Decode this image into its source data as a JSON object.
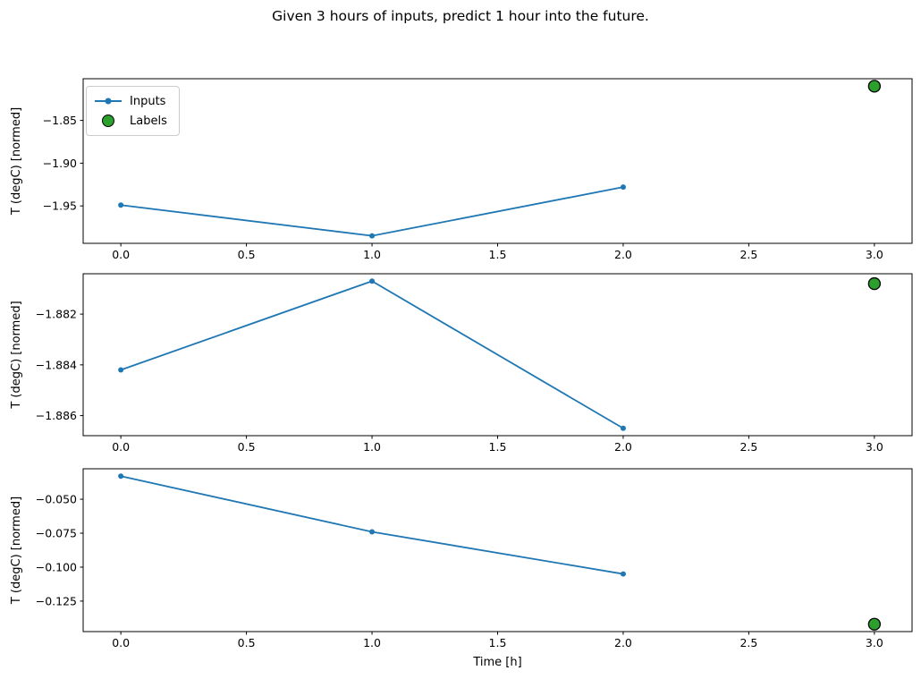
{
  "figure": {
    "title": "Given 3 hours of inputs, predict 1 hour into the future.",
    "background": "#ffffff"
  },
  "colors": {
    "inputs_line": "#1f77b4",
    "labels_fill": "#2ca02c",
    "labels_edge": "#000000",
    "axis": "#000000",
    "legend_border": "#cccccc"
  },
  "legend": {
    "position": "upper-left-of-first-subplot",
    "items": [
      {
        "label": "Inputs",
        "marker": "line-with-dot",
        "color": "#1f77b4"
      },
      {
        "label": "Labels",
        "marker": "filled-circle",
        "color": "#2ca02c"
      }
    ]
  },
  "chart_data": [
    {
      "type": "line",
      "title": "",
      "xlabel": "",
      "ylabel": "T (degC) [normed]",
      "x": [
        0,
        1,
        2
      ],
      "series": [
        {
          "name": "Inputs",
          "values": [
            -1.949,
            -1.985,
            -1.928
          ]
        }
      ],
      "labels_point": {
        "name": "Labels",
        "x": 3,
        "y": -1.81
      },
      "xlim": [
        -0.15,
        3.15
      ],
      "ylim": [
        -1.99375,
        -1.80125
      ],
      "xticks": [
        0,
        0.5,
        1,
        1.5,
        2,
        2.5,
        3
      ],
      "xtick_labels": [
        "0.0",
        "0.5",
        "1.0",
        "1.5",
        "2.0",
        "2.5",
        "3.0"
      ],
      "yticks": [
        -1.85,
        -1.9,
        -1.95
      ],
      "ytick_labels": [
        "−1.85",
        "−1.90",
        "−1.95"
      ],
      "grid": false
    },
    {
      "type": "line",
      "title": "",
      "xlabel": "",
      "ylabel": "T (degC) [normed]",
      "x": [
        0,
        1,
        2
      ],
      "series": [
        {
          "name": "Inputs",
          "values": [
            -1.8842,
            -1.8807,
            -1.8865
          ]
        }
      ],
      "labels_point": {
        "name": "Labels",
        "x": 3,
        "y": -1.8808
      },
      "xlim": [
        -0.15,
        3.15
      ],
      "ylim": [
        -1.88679,
        -1.88041
      ],
      "xticks": [
        0,
        0.5,
        1,
        1.5,
        2,
        2.5,
        3
      ],
      "xtick_labels": [
        "0.0",
        "0.5",
        "1.0",
        "1.5",
        "2.0",
        "2.5",
        "3.0"
      ],
      "yticks": [
        -1.882,
        -1.884,
        -1.886
      ],
      "ytick_labels": [
        "−1.882",
        "−1.884",
        "−1.886"
      ],
      "grid": false
    },
    {
      "type": "line",
      "title": "",
      "xlabel": "Time [h]",
      "ylabel": "T (degC) [normed]",
      "x": [
        0,
        1,
        2
      ],
      "series": [
        {
          "name": "Inputs",
          "values": [
            -0.033,
            -0.074,
            -0.105
          ]
        }
      ],
      "labels_point": {
        "name": "Labels",
        "x": 3,
        "y": -0.142
      },
      "xlim": [
        -0.15,
        3.15
      ],
      "ylim": [
        -0.14745,
        -0.02755
      ],
      "xticks": [
        0,
        0.5,
        1,
        1.5,
        2,
        2.5,
        3
      ],
      "xtick_labels": [
        "0.0",
        "0.5",
        "1.0",
        "1.5",
        "2.0",
        "2.5",
        "3.0"
      ],
      "yticks": [
        -0.05,
        -0.075,
        -0.1,
        -0.125
      ],
      "ytick_labels": [
        "−0.050",
        "−0.075",
        "−0.100",
        "−0.125"
      ],
      "grid": false
    }
  ]
}
